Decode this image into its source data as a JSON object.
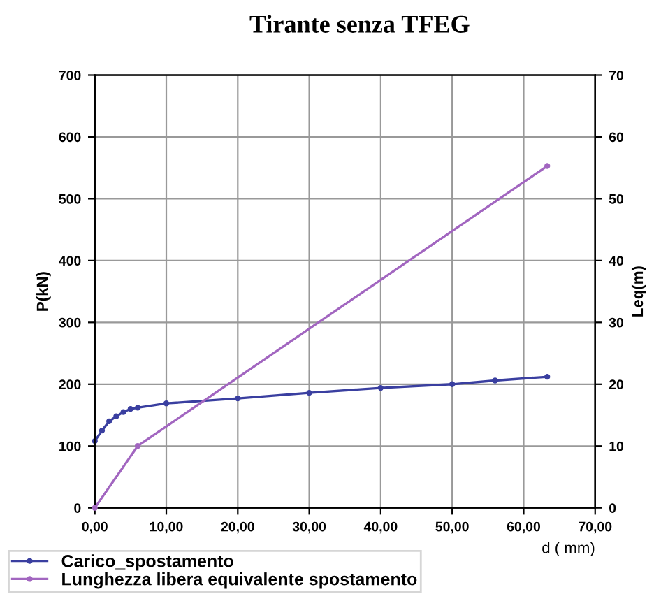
{
  "chart_data": {
    "type": "line",
    "title": "Tirante senza TFEG",
    "xlabel": "d ( mm)",
    "ylabel": "P(kN)",
    "y2label": "Leq(m)",
    "xlim": [
      0,
      70
    ],
    "xticks": [
      {
        "value": 0,
        "label": "0,00"
      },
      {
        "value": 10,
        "label": "10,00"
      },
      {
        "value": 20,
        "label": "20,00"
      },
      {
        "value": 30,
        "label": "30,00"
      },
      {
        "value": 40,
        "label": "40,00"
      },
      {
        "value": 50,
        "label": "50,00"
      },
      {
        "value": 60,
        "label": "60,00"
      },
      {
        "value": 70,
        "label": "70,00"
      }
    ],
    "ylim": [
      0,
      700
    ],
    "yticks": [
      0,
      100,
      200,
      300,
      400,
      500,
      600,
      700
    ],
    "y2lim": [
      0,
      70
    ],
    "y2ticks": [
      0,
      10,
      20,
      30,
      40,
      50,
      60,
      70
    ],
    "grid": true,
    "legend": "bottom left",
    "marker": "circle",
    "line_style": "solid",
    "series": [
      {
        "name": "Carico_spostamento",
        "color": "#3a3fa0",
        "x": [
          0,
          1,
          2,
          3,
          4,
          5,
          6,
          10,
          20,
          30,
          40,
          50,
          56,
          63.3
        ],
        "values": [
          108,
          125,
          140,
          148,
          155,
          160,
          162,
          169,
          177,
          186,
          194,
          200,
          206,
          212
        ]
      },
      {
        "name": "Lunghezza libera equivalente spostamento",
        "color": "#a266c0",
        "axis": "y2",
        "x": [
          0,
          6,
          63.3
        ],
        "values": [
          0,
          10,
          55.3
        ]
      }
    ]
  }
}
